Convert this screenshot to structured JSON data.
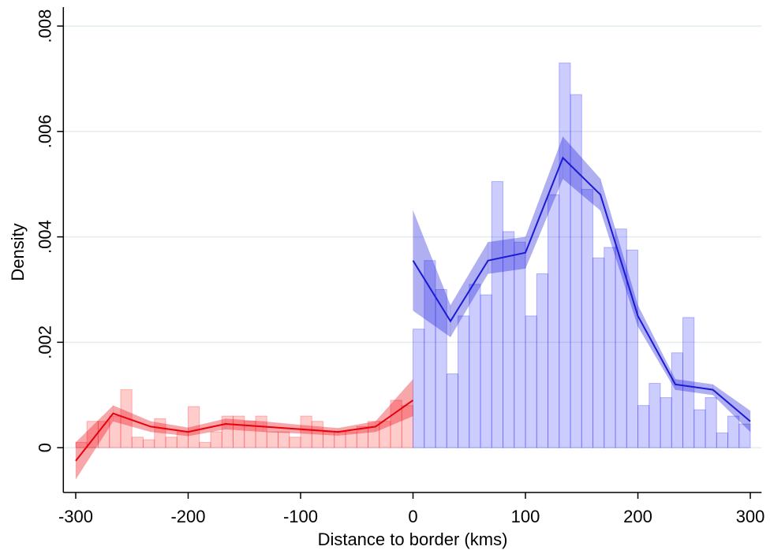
{
  "chart_data": {
    "type": "histogram",
    "xlabel": "Distance to border (kms)",
    "ylabel": "Density",
    "xlim": [
      -311,
      310
    ],
    "ylim": [
      -0.00085,
      0.0083
    ],
    "xticks": [
      -300,
      -200,
      -100,
      0,
      100,
      200,
      300
    ],
    "yticks": [
      {
        "value": 0,
        "label": "0"
      },
      {
        "value": 0.002,
        "label": ".002"
      },
      {
        "value": 0.004,
        "label": ".004"
      },
      {
        "value": 0.006,
        "label": ".006"
      },
      {
        "value": 0.008,
        "label": ".008"
      }
    ],
    "grid": true,
    "histograms": [
      {
        "color": "#ff0000",
        "bins": [
          -300,
          -290,
          -280,
          -270,
          -260,
          -250,
          -240,
          -230,
          -220,
          -210,
          -200,
          -190,
          -180,
          -170,
          -160,
          -150,
          -140,
          -130,
          -120,
          -110,
          -100,
          -90,
          -80,
          -70,
          -60,
          -50,
          -40,
          -30,
          -20,
          -10,
          0
        ],
        "values": [
          0.0001,
          0.0005,
          0.0005,
          0.0006,
          0.0011,
          0.0002,
          0.00015,
          0.00055,
          0.0002,
          0.0003,
          0.00078,
          0.0001,
          0.0003,
          0.0006,
          0.0006,
          0.0005,
          0.0006,
          0.0003,
          0.0003,
          0.0002,
          0.0006,
          0.0005,
          0.0003,
          0.0003,
          0.0003,
          0.0004,
          0.0005,
          0.0005,
          0.0009,
          0.0008
        ]
      },
      {
        "color": "#0000ff",
        "bins": [
          0,
          10,
          20,
          30,
          40,
          50,
          60,
          70,
          80,
          90,
          100,
          110,
          120,
          130,
          140,
          150,
          160,
          170,
          180,
          190,
          200,
          210,
          220,
          230,
          240,
          250,
          260,
          270,
          280,
          290,
          300
        ],
        "values": [
          0.00225,
          0.00355,
          0.003,
          0.0014,
          0.0025,
          0.0031,
          0.0029,
          0.00505,
          0.0041,
          0.0039,
          0.0025,
          0.0033,
          0.0048,
          0.0073,
          0.0067,
          0.0049,
          0.0036,
          0.0038,
          0.00415,
          0.00375,
          0.0008,
          0.00122,
          0.00095,
          0.0018,
          0.00247,
          0.00072,
          0.00095,
          0.00028,
          0.0006,
          0.00045
        ]
      }
    ],
    "lines": [
      {
        "color": "#e8000b",
        "x": [
          -300,
          -266.7,
          -233.3,
          -200,
          -166.7,
          -133.3,
          -100,
          -66.7,
          -33.3,
          0
        ],
        "values": [
          -0.00025,
          0.00065,
          0.0004,
          0.0003,
          0.00045,
          0.0004,
          0.00035,
          0.0003,
          0.0004,
          0.0009
        ],
        "lower": [
          -0.0006,
          0.0005,
          0.0003,
          0.00022,
          0.00035,
          0.0003,
          0.00027,
          0.00023,
          0.0003,
          0.0006
        ],
        "upper": [
          0.0001,
          0.0008,
          0.0005,
          0.00038,
          0.00055,
          0.0005,
          0.00043,
          0.00037,
          0.0005,
          0.0013
        ]
      },
      {
        "color": "#1a1ad6",
        "x": [
          0,
          33.3,
          66.7,
          100,
          133.3,
          166.7,
          200,
          233.3,
          266.7,
          300
        ],
        "values": [
          0.00355,
          0.0024,
          0.00355,
          0.0037,
          0.0055,
          0.0048,
          0.0025,
          0.0012,
          0.0011,
          0.0005
        ],
        "lower": [
          0.0026,
          0.0021,
          0.0033,
          0.0034,
          0.0051,
          0.0045,
          0.0023,
          0.0011,
          0.001,
          0.0003
        ],
        "upper": [
          0.0045,
          0.0027,
          0.0039,
          0.004,
          0.0059,
          0.0051,
          0.0027,
          0.0013,
          0.0012,
          0.0007
        ]
      }
    ]
  }
}
